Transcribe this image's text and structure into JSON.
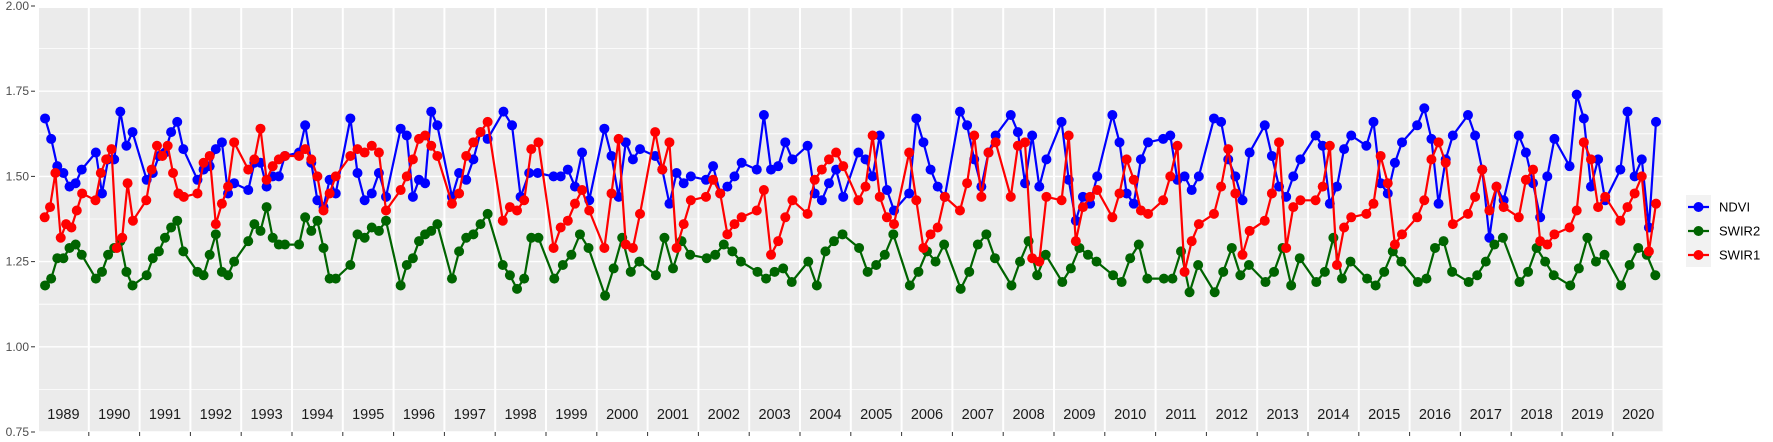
{
  "chart_data": {
    "type": "line",
    "title": "",
    "xlabel": "",
    "ylabel": "",
    "ylim": [
      0.75,
      2.0
    ],
    "yticks": [
      "0.75",
      "1.00",
      "1.25",
      "1.50",
      "1.75",
      "2.00"
    ],
    "grid": true,
    "legend_position": "right",
    "colors": {
      "NDVI": "#0000ff",
      "SWIR2": "#006400",
      "SWIR1": "#ff0000"
    },
    "legend": [
      "NDVI",
      "SWIR2",
      "SWIR1"
    ],
    "years": [
      {
        "year": "1989",
        "NDVI": [
          1.67,
          1.61,
          1.53,
          1.51,
          1.47,
          1.48,
          1.52
        ],
        "SWIR2": [
          1.18,
          1.2,
          1.26,
          1.26,
          1.29,
          1.3,
          1.27
        ],
        "SWIR1": [
          1.38,
          1.41,
          1.51,
          1.32,
          1.36,
          1.35,
          1.4,
          1.45
        ]
      },
      {
        "year": "1990",
        "NDVI": [
          1.57,
          1.45,
          1.55,
          1.55,
          1.69,
          1.59,
          1.63
        ],
        "SWIR2": [
          1.2,
          1.22,
          1.27,
          1.29,
          1.31,
          1.22,
          1.18
        ],
        "SWIR1": [
          1.43,
          1.51,
          1.55,
          1.58,
          1.29,
          1.32,
          1.48,
          1.37
        ]
      },
      {
        "year": "1991",
        "NDVI": [
          1.49,
          1.51,
          1.56,
          1.57,
          1.63,
          1.66,
          1.58
        ],
        "SWIR2": [
          1.21,
          1.26,
          1.28,
          1.32,
          1.35,
          1.37,
          1.28
        ],
        "SWIR1": [
          1.43,
          1.52,
          1.59,
          1.56,
          1.59,
          1.51,
          1.45,
          1.44
        ]
      },
      {
        "year": "1992",
        "NDVI": [
          1.49,
          1.52,
          1.53,
          1.58,
          1.6,
          1.45,
          1.48
        ],
        "SWIR2": [
          1.22,
          1.21,
          1.27,
          1.33,
          1.22,
          1.21,
          1.25
        ],
        "SWIR1": [
          1.45,
          1.54,
          1.56,
          1.36,
          1.42,
          1.47,
          1.6
        ]
      },
      {
        "year": "1993",
        "NDVI": [
          1.46,
          1.54,
          1.54,
          1.47,
          1.5,
          1.5,
          1.56
        ],
        "SWIR2": [
          1.31,
          1.36,
          1.34,
          1.41,
          1.32,
          1.3,
          1.3
        ],
        "SWIR1": [
          1.52,
          1.55,
          1.64,
          1.49,
          1.53,
          1.55,
          1.56
        ]
      },
      {
        "year": "1994",
        "NDVI": [
          1.57,
          1.65,
          1.54,
          1.43,
          1.41,
          1.49,
          1.45
        ],
        "SWIR2": [
          1.3,
          1.38,
          1.34,
          1.37,
          1.29,
          1.2,
          1.2
        ],
        "SWIR1": [
          1.56,
          1.58,
          1.55,
          1.5,
          1.4,
          1.45,
          1.5
        ]
      },
      {
        "year": "1995",
        "NDVI": [
          1.67,
          1.51,
          1.43,
          1.45,
          1.51,
          1.44
        ],
        "SWIR2": [
          1.24,
          1.33,
          1.32,
          1.35,
          1.34,
          1.37
        ],
        "SWIR1": [
          1.56,
          1.58,
          1.57,
          1.59,
          1.57,
          1.4
        ]
      },
      {
        "year": "1996",
        "NDVI": [
          1.64,
          1.62,
          1.44,
          1.49,
          1.48,
          1.69,
          1.65
        ],
        "SWIR2": [
          1.18,
          1.24,
          1.26,
          1.31,
          1.33,
          1.34,
          1.36
        ],
        "SWIR1": [
          1.46,
          1.5,
          1.55,
          1.61,
          1.62,
          1.59,
          1.56
        ]
      },
      {
        "year": "1997",
        "NDVI": [
          1.44,
          1.51,
          1.49,
          1.55,
          1.63,
          1.61
        ],
        "SWIR2": [
          1.2,
          1.28,
          1.32,
          1.33,
          1.36,
          1.39
        ],
        "SWIR1": [
          1.42,
          1.45,
          1.56,
          1.6,
          1.63,
          1.66
        ]
      },
      {
        "year": "1998",
        "NDVI": [
          1.69,
          1.65,
          1.44,
          1.51,
          1.51
        ],
        "SWIR2": [
          1.24,
          1.21,
          1.17,
          1.2,
          1.32,
          1.32
        ],
        "SWIR1": [
          1.37,
          1.41,
          1.4,
          1.43,
          1.58,
          1.6
        ]
      },
      {
        "year": "1999",
        "NDVI": [
          1.5,
          1.5,
          1.52,
          1.47,
          1.57,
          1.43
        ],
        "SWIR2": [
          1.2,
          1.24,
          1.27,
          1.33,
          1.29
        ],
        "SWIR1": [
          1.29,
          1.35,
          1.37,
          1.42,
          1.46,
          1.4
        ]
      },
      {
        "year": "2000",
        "NDVI": [
          1.64,
          1.56,
          1.44,
          1.6,
          1.55,
          1.58
        ],
        "SWIR2": [
          1.15,
          1.23,
          1.32,
          1.22,
          1.25
        ],
        "SWIR1": [
          1.29,
          1.45,
          1.61,
          1.3,
          1.29,
          1.39
        ]
      },
      {
        "year": "2001",
        "NDVI": [
          1.56,
          1.52,
          1.42,
          1.51,
          1.48,
          1.5
        ],
        "SWIR2": [
          1.21,
          1.32,
          1.23,
          1.31,
          1.27
        ],
        "SWIR1": [
          1.63,
          1.52,
          1.6,
          1.29,
          1.36,
          1.43
        ]
      },
      {
        "year": "2002",
        "NDVI": [
          1.49,
          1.53,
          1.45,
          1.47,
          1.5,
          1.54
        ],
        "SWIR2": [
          1.26,
          1.27,
          1.3,
          1.28,
          1.25
        ],
        "SWIR1": [
          1.44,
          1.49,
          1.45,
          1.33,
          1.36,
          1.38
        ]
      },
      {
        "year": "2003",
        "NDVI": [
          1.52,
          1.68,
          1.52,
          1.53,
          1.6,
          1.55
        ],
        "SWIR2": [
          1.22,
          1.2,
          1.22,
          1.23,
          1.19
        ],
        "SWIR1": [
          1.4,
          1.46,
          1.27,
          1.31,
          1.38,
          1.43
        ]
      },
      {
        "year": "2004",
        "NDVI": [
          1.59,
          1.45,
          1.43,
          1.48,
          1.52,
          1.44
        ],
        "SWIR2": [
          1.25,
          1.18,
          1.28,
          1.31,
          1.33
        ],
        "SWIR1": [
          1.39,
          1.49,
          1.52,
          1.55,
          1.57,
          1.53
        ]
      },
      {
        "year": "2005",
        "NDVI": [
          1.57,
          1.55,
          1.5,
          1.62,
          1.46,
          1.4
        ],
        "SWIR2": [
          1.29,
          1.22,
          1.24,
          1.27,
          1.33
        ],
        "SWIR1": [
          1.43,
          1.47,
          1.62,
          1.44,
          1.38,
          1.36
        ]
      },
      {
        "year": "2006",
        "NDVI": [
          1.45,
          1.67,
          1.6,
          1.52,
          1.47,
          1.44
        ],
        "SWIR2": [
          1.18,
          1.22,
          1.28,
          1.25,
          1.3
        ],
        "SWIR1": [
          1.57,
          1.43,
          1.29,
          1.33,
          1.35,
          1.44
        ]
      },
      {
        "year": "2007",
        "NDVI": [
          1.69,
          1.65,
          1.55,
          1.47,
          1.57,
          1.62
        ],
        "SWIR2": [
          1.17,
          1.22,
          1.3,
          1.33,
          1.26
        ],
        "SWIR1": [
          1.4,
          1.48,
          1.62,
          1.44,
          1.57,
          1.6
        ]
      },
      {
        "year": "2008",
        "NDVI": [
          1.68,
          1.63,
          1.48,
          1.62,
          1.47,
          1.55
        ],
        "SWIR2": [
          1.18,
          1.25,
          1.31,
          1.21,
          1.27
        ],
        "SWIR1": [
          1.44,
          1.59,
          1.6,
          1.26,
          1.25,
          1.44
        ]
      },
      {
        "year": "2009",
        "NDVI": [
          1.66,
          1.49,
          1.37,
          1.44,
          1.42,
          1.5
        ],
        "SWIR2": [
          1.19,
          1.23,
          1.29,
          1.27,
          1.25
        ],
        "SWIR1": [
          1.43,
          1.62,
          1.31,
          1.41,
          1.44,
          1.46
        ]
      },
      {
        "year": "2010",
        "NDVI": [
          1.68,
          1.6,
          1.45,
          1.42,
          1.55,
          1.6
        ],
        "SWIR2": [
          1.21,
          1.19,
          1.26,
          1.3,
          1.2
        ],
        "SWIR1": [
          1.38,
          1.45,
          1.55,
          1.49,
          1.4,
          1.39
        ]
      },
      {
        "year": "2011",
        "NDVI": [
          1.61,
          1.62,
          1.49,
          1.5,
          1.46,
          1.5
        ],
        "SWIR2": [
          1.2,
          1.2,
          1.28,
          1.16,
          1.24
        ],
        "SWIR1": [
          1.43,
          1.5,
          1.59,
          1.22,
          1.31,
          1.36
        ]
      },
      {
        "year": "2012",
        "NDVI": [
          1.67,
          1.66,
          1.55,
          1.5,
          1.43,
          1.57
        ],
        "SWIR2": [
          1.16,
          1.22,
          1.29,
          1.21,
          1.24
        ],
        "SWIR1": [
          1.39,
          1.47,
          1.58,
          1.45,
          1.27,
          1.34
        ]
      },
      {
        "year": "2013",
        "NDVI": [
          1.65,
          1.56,
          1.47,
          1.44,
          1.5,
          1.55
        ],
        "SWIR2": [
          1.19,
          1.22,
          1.29,
          1.18,
          1.26
        ],
        "SWIR1": [
          1.37,
          1.45,
          1.6,
          1.29,
          1.41,
          1.43
        ]
      },
      {
        "year": "2014",
        "NDVI": [
          1.62,
          1.59,
          1.42,
          1.47,
          1.58,
          1.62
        ],
        "SWIR2": [
          1.19,
          1.22,
          1.32,
          1.2,
          1.25
        ],
        "SWIR1": [
          1.43,
          1.47,
          1.59,
          1.24,
          1.35,
          1.38
        ]
      },
      {
        "year": "2015",
        "NDVI": [
          1.59,
          1.66,
          1.48,
          1.45,
          1.54,
          1.6
        ],
        "SWIR2": [
          1.2,
          1.18,
          1.22,
          1.28,
          1.25
        ],
        "SWIR1": [
          1.39,
          1.42,
          1.56,
          1.48,
          1.3,
          1.33
        ]
      },
      {
        "year": "2016",
        "NDVI": [
          1.65,
          1.7,
          1.61,
          1.42,
          1.55,
          1.62
        ],
        "SWIR2": [
          1.19,
          1.2,
          1.29,
          1.31,
          1.22
        ],
        "SWIR1": [
          1.38,
          1.43,
          1.55,
          1.6,
          1.54,
          1.36
        ]
      },
      {
        "year": "2017",
        "NDVI": [
          1.68,
          1.62,
          1.52,
          1.32,
          1.47,
          1.43
        ],
        "SWIR2": [
          1.19,
          1.21,
          1.25,
          1.3,
          1.32
        ],
        "SWIR1": [
          1.39,
          1.44,
          1.52,
          1.4,
          1.47,
          1.41
        ]
      },
      {
        "year": "2018",
        "NDVI": [
          1.62,
          1.57,
          1.48,
          1.38,
          1.5,
          1.61
        ],
        "SWIR2": [
          1.19,
          1.22,
          1.29,
          1.25,
          1.21
        ],
        "SWIR1": [
          1.38,
          1.49,
          1.52,
          1.31,
          1.3,
          1.33
        ]
      },
      {
        "year": "2019",
        "NDVI": [
          1.53,
          1.74,
          1.67,
          1.47,
          1.55,
          1.43
        ],
        "SWIR2": [
          1.18,
          1.23,
          1.32,
          1.25,
          1.27
        ],
        "SWIR1": [
          1.35,
          1.4,
          1.6,
          1.55,
          1.41,
          1.44
        ]
      },
      {
        "year": "2020",
        "NDVI": [
          1.52,
          1.69,
          1.5,
          1.55,
          1.35,
          1.66
        ],
        "SWIR2": [
          1.18,
          1.24,
          1.29,
          1.27,
          1.21
        ],
        "SWIR1": [
          1.37,
          1.41,
          1.45,
          1.5,
          1.28,
          1.42
        ]
      }
    ]
  }
}
